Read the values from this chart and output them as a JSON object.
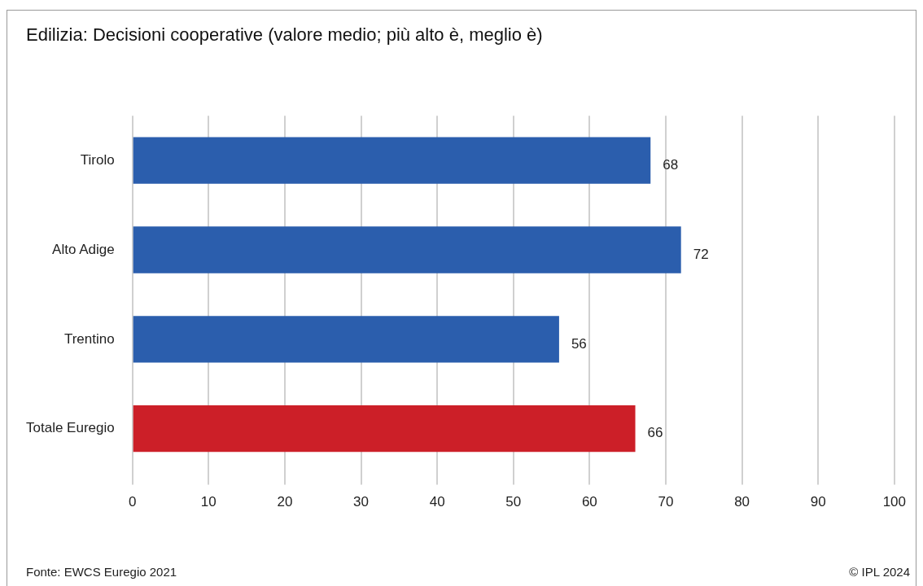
{
  "chart_data": {
    "type": "bar",
    "orientation": "horizontal",
    "title": "Edilizia: Decisioni cooperative (valore medio; più alto è, meglio è)",
    "categories": [
      "Tirolo",
      "Alto Adige",
      "Trentino",
      "Totale Euregio"
    ],
    "values": [
      68,
      72,
      56,
      66
    ],
    "colors": [
      "#2b5ead",
      "#2b5ead",
      "#2b5ead",
      "#cc1f28"
    ],
    "xlim": [
      0,
      100
    ],
    "xticks": [
      0,
      10,
      20,
      30,
      40,
      50,
      60,
      70,
      80,
      90,
      100
    ],
    "grid": "x",
    "legend": false,
    "data_labels": true,
    "annotations": [
      "Fonte: EWCS Euregio 2021",
      "© IPL 2024"
    ]
  }
}
